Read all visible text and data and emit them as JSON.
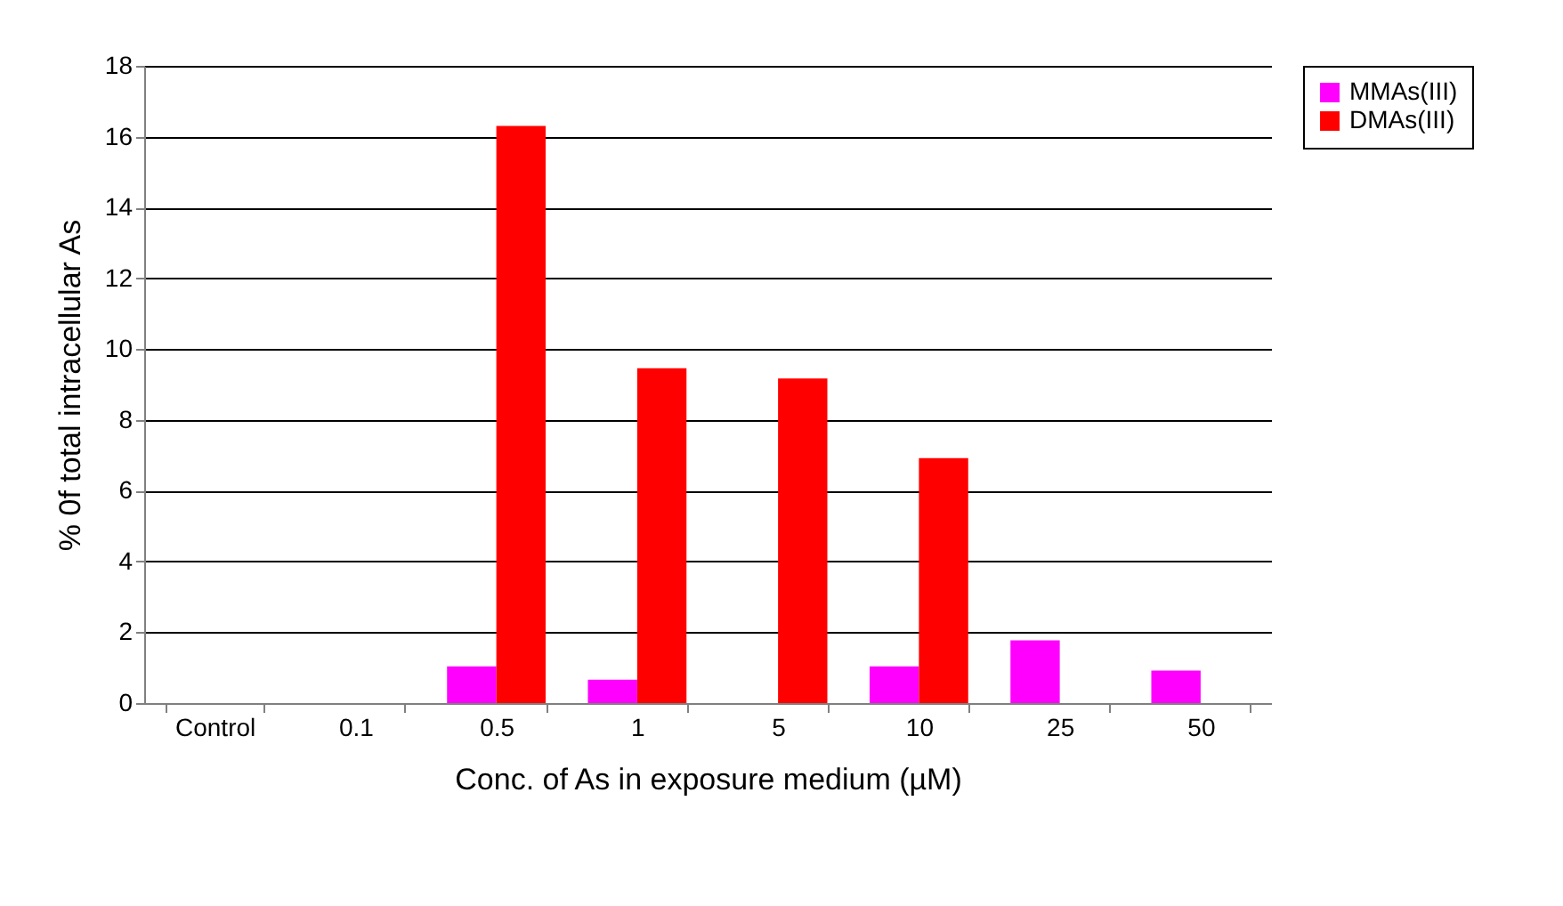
{
  "chart_data": {
    "type": "bar",
    "xlabel": "Conc. of As in exposure medium (µM)",
    "ylabel": "% 0f total intracellular As",
    "categories": [
      "Control",
      "0.1",
      "0.5",
      "1",
      "5",
      "10",
      "25",
      "50"
    ],
    "series": [
      {
        "name": "MMAs(III)",
        "color": "#ff00ff",
        "values": [
          null,
          null,
          1.04,
          0.66,
          null,
          1.04,
          1.77,
          0.92
        ]
      },
      {
        "name": "DMAs(III)",
        "color": "#ff0000",
        "values": [
          null,
          null,
          16.3,
          9.46,
          9.17,
          6.92,
          null,
          null
        ]
      }
    ],
    "ylim": [
      0,
      18
    ],
    "yticks": [
      0,
      2,
      4,
      6,
      8,
      10,
      12,
      14,
      16,
      18
    ],
    "grid": "y",
    "legend": "right"
  }
}
